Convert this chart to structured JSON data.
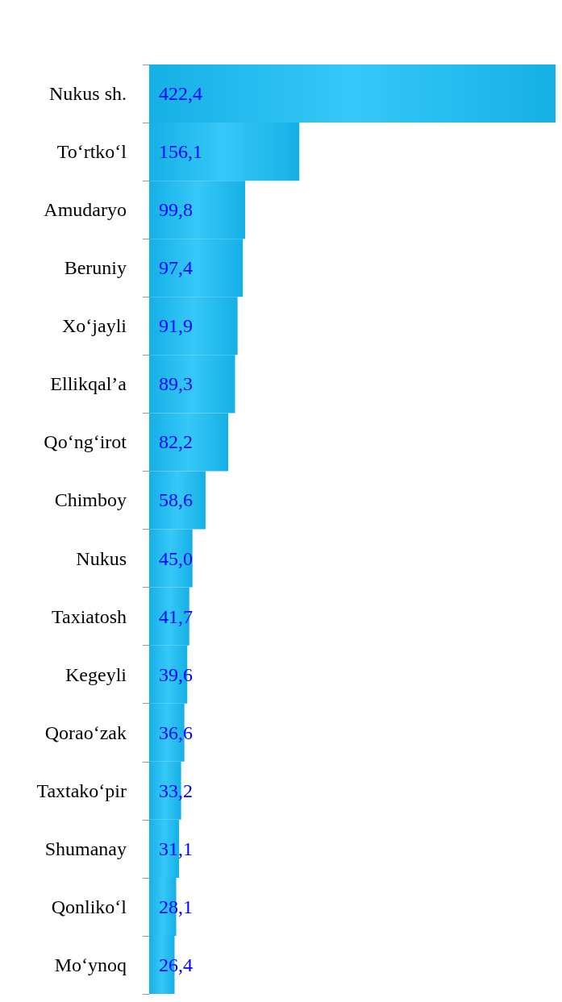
{
  "chart_data": {
    "type": "bar",
    "orientation": "horizontal",
    "categories": [
      "Nukus sh.",
      "To‘rtko‘l",
      "Amudaryo",
      "Beruniy",
      "Xo‘jayli",
      "Ellikqal’a",
      "Qo‘ng‘irot",
      "Chimboy",
      "Nukus",
      "Taxiatosh",
      "Kegeyli",
      "Qorao‘zak",
      "Taxtako‘pir",
      "Shumanay",
      "Qonliko‘l",
      "Mo‘ynoq"
    ],
    "values": [
      422.4,
      156.1,
      99.8,
      97.4,
      91.9,
      89.3,
      82.2,
      58.6,
      45.0,
      41.7,
      39.6,
      36.6,
      33.2,
      31.1,
      28.1,
      26.4
    ],
    "value_labels": [
      "422,4",
      "156,1",
      "99,8",
      "97,4",
      "91,9",
      "89,3",
      "82,2",
      "58,6",
      "45,0",
      "41,7",
      "39,6",
      "36,6",
      "33,2",
      "31,1",
      "28,1",
      "26,4"
    ],
    "color": "#16b0e6"
  }
}
